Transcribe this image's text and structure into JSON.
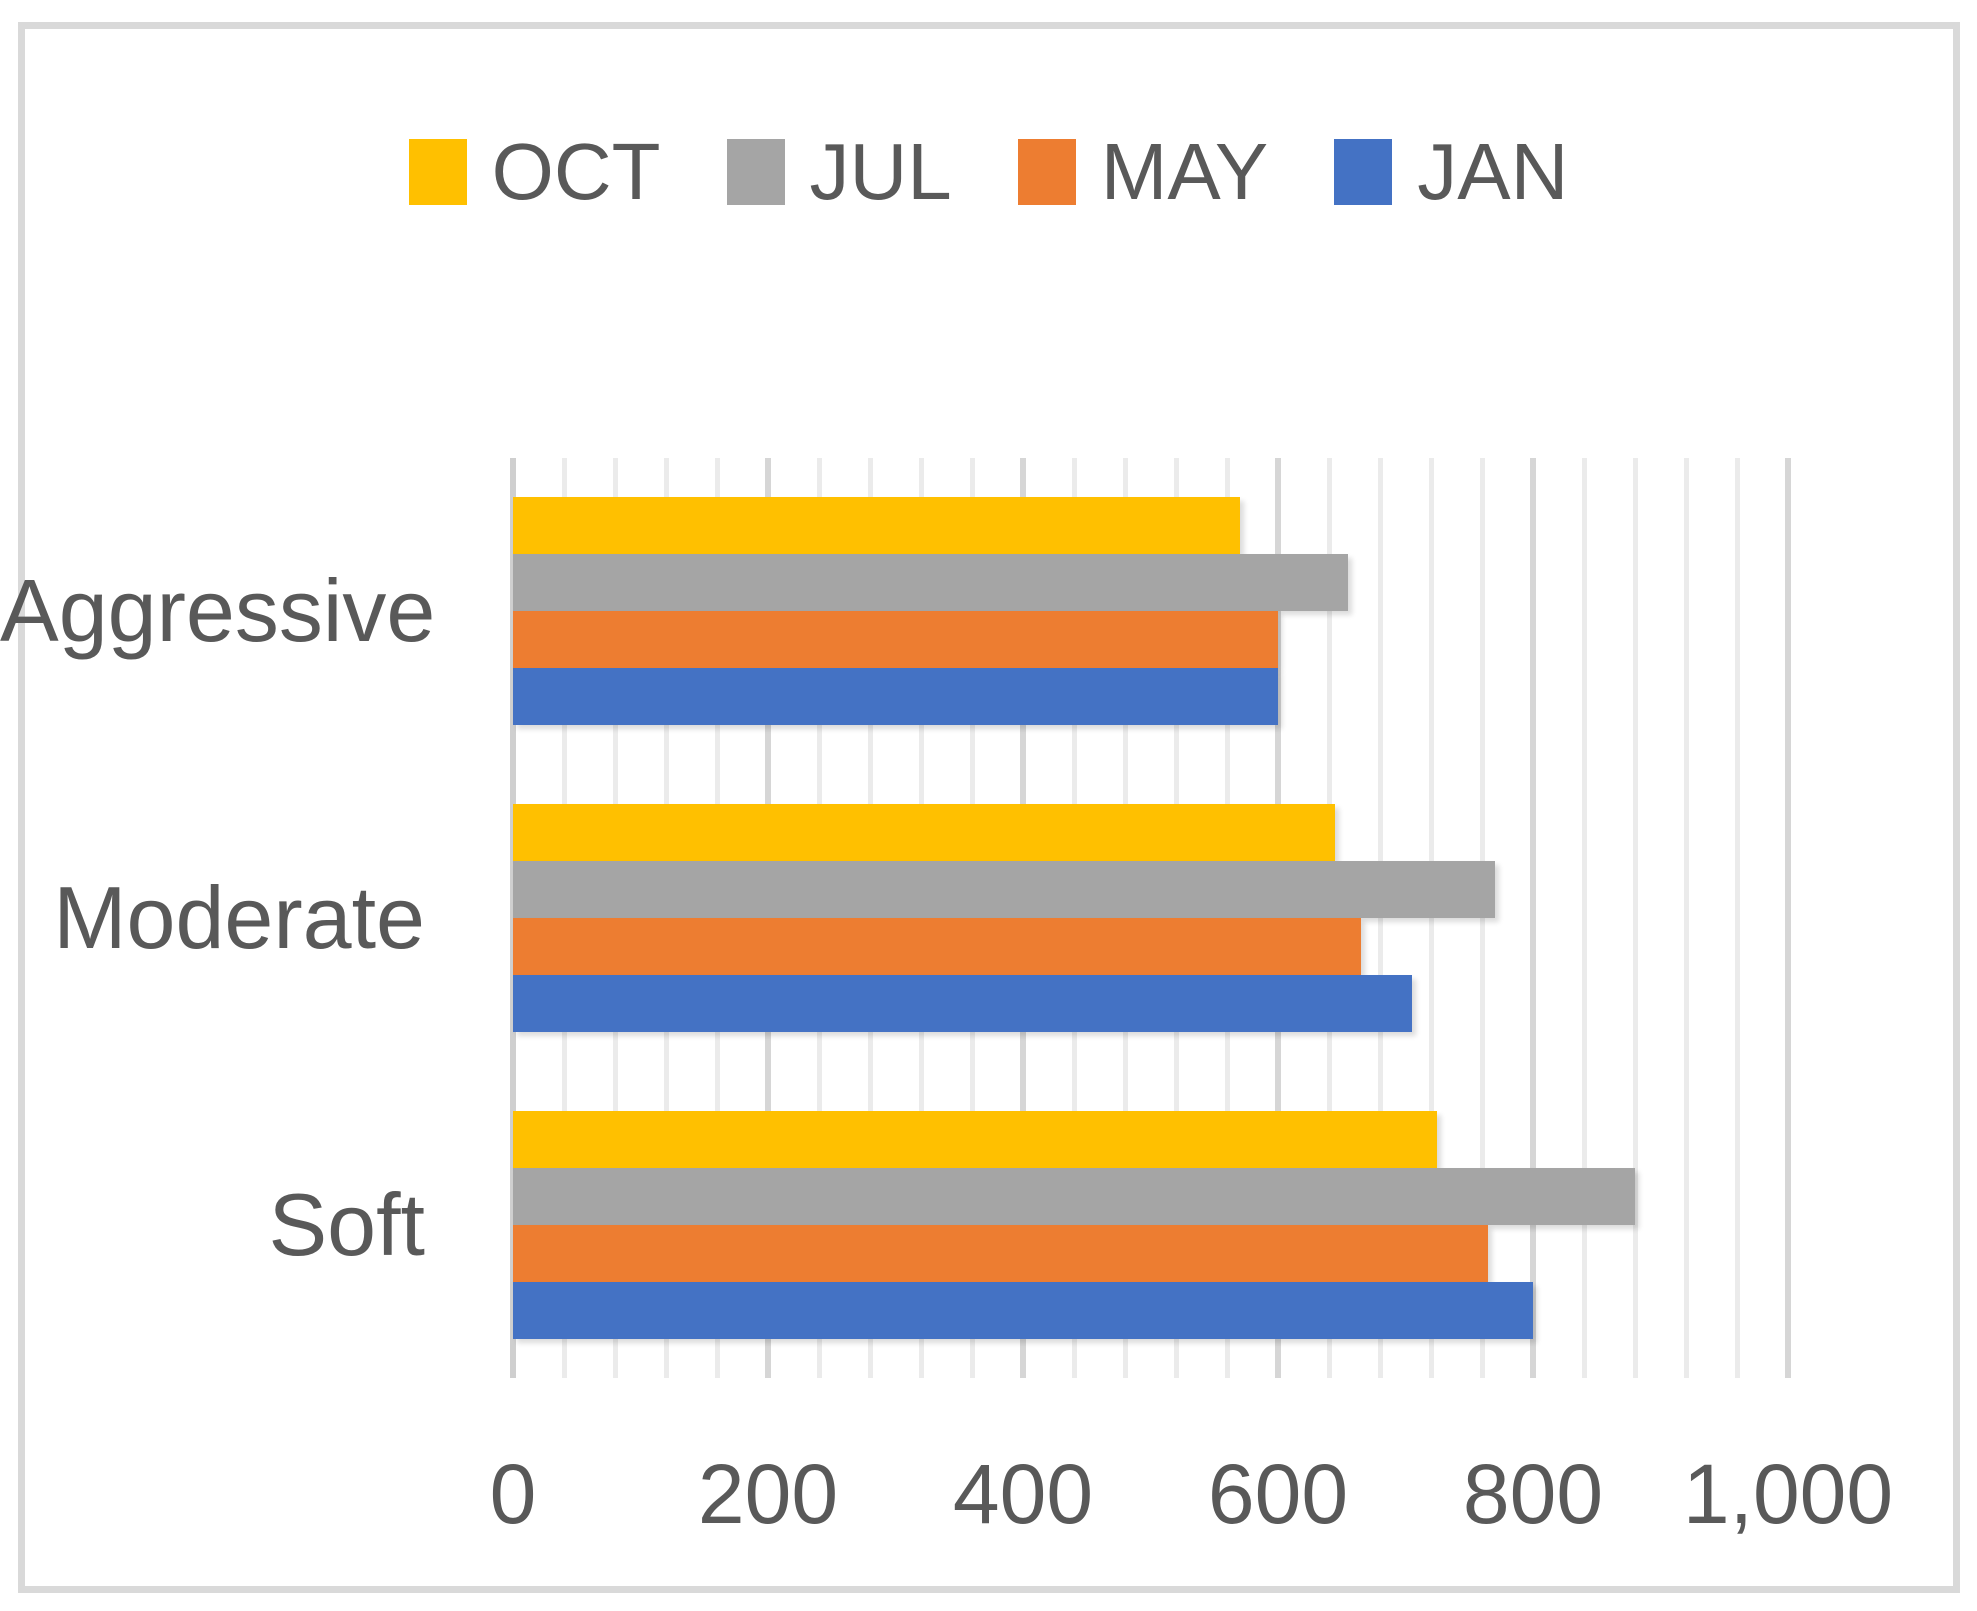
{
  "chart": {
    "background_color": "#FFFFFF",
    "border_color": "#D9D9D9",
    "text_color": "#595959"
  },
  "legend": {
    "position": "top",
    "items": [
      {
        "label": "OCT",
        "color": "#FFC000"
      },
      {
        "label": "JUL",
        "color": "#A5A5A5"
      },
      {
        "label": "MAY",
        "color": "#ED7D31"
      },
      {
        "label": "JAN",
        "color": "#4472C4"
      }
    ]
  },
  "chart_data": {
    "type": "bar",
    "orientation": "horizontal",
    "title": "",
    "categories": [
      "Aggressive",
      "Moderate",
      "Soft"
    ],
    "series": [
      {
        "name": "OCT",
        "color": "#FFC000",
        "values": [
          570,
          645,
          725
        ]
      },
      {
        "name": "JUL",
        "color": "#A5A5A5",
        "values": [
          655,
          770,
          880
        ]
      },
      {
        "name": "MAY",
        "color": "#ED7D31",
        "values": [
          600,
          665,
          765
        ]
      },
      {
        "name": "JAN",
        "color": "#4472C4",
        "values": [
          600,
          705,
          800
        ]
      }
    ],
    "xlim": [
      0,
      1000
    ],
    "x_ticks": [
      0,
      200,
      400,
      600,
      800,
      1000
    ],
    "x_tick_labels": [
      "0",
      "200",
      "400",
      "600",
      "800",
      "1,000"
    ],
    "major_unit": 200,
    "minor_unit": 40,
    "grid": {
      "vertical_major": true,
      "vertical_minor": true,
      "horizontal": false
    },
    "legend_position": "top",
    "xlabel": "",
    "ylabel": ""
  }
}
